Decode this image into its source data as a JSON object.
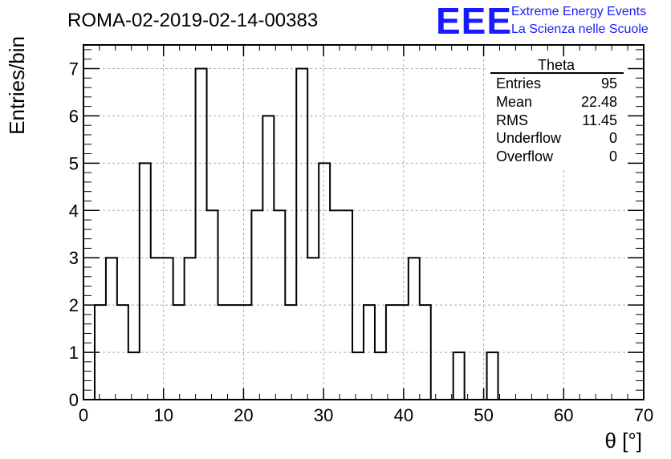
{
  "header": {
    "title": "ROMA-02-2019-02-14-00383",
    "brand_logo": "EEE",
    "brand_line1": "Extreme Energy Events",
    "brand_line2": "La Scienza nelle Scuole"
  },
  "stats_box": {
    "title": "Theta",
    "rows": [
      {
        "label": "Entries",
        "value": "95"
      },
      {
        "label": "Mean",
        "value": "22.48"
      },
      {
        "label": "RMS",
        "value": "11.45"
      },
      {
        "label": "Underflow",
        "value": "0"
      },
      {
        "label": "Overflow",
        "value": "0"
      }
    ]
  },
  "chart_data": {
    "type": "bar",
    "style": "step-histogram",
    "title": "ROMA-02-2019-02-14-00383",
    "xlabel": "θ [°]",
    "ylabel": "Entries/bin",
    "xlim": [
      0,
      70
    ],
    "ylim": [
      0,
      7.5
    ],
    "grid": true,
    "bin_width": 1.4,
    "bin_low_edges": [
      1.4,
      2.8,
      4.2,
      5.6,
      7.0,
      8.4,
      9.8,
      11.2,
      12.6,
      14.0,
      15.4,
      16.8,
      18.2,
      19.6,
      21.0,
      22.4,
      23.8,
      25.2,
      26.6,
      28.0,
      29.4,
      30.8,
      32.2,
      33.6,
      35.0,
      36.4,
      37.8,
      39.2,
      40.6,
      42.0,
      43.4,
      44.8,
      46.2,
      47.6,
      49.0,
      50.4,
      51.8
    ],
    "values": [
      2,
      3,
      2,
      1,
      5,
      3,
      3,
      2,
      3,
      7,
      4,
      2,
      2,
      2,
      4,
      6,
      4,
      2,
      7,
      3,
      5,
      4,
      4,
      1,
      2,
      1,
      2,
      2,
      3,
      2,
      0,
      0,
      1,
      0,
      0,
      1,
      0
    ],
    "x_ticks": [
      "0",
      "10",
      "20",
      "30",
      "40",
      "50",
      "60",
      "70"
    ],
    "y_ticks": [
      "0",
      "1",
      "2",
      "3",
      "4",
      "5",
      "6",
      "7"
    ],
    "line_color": "#000000"
  }
}
